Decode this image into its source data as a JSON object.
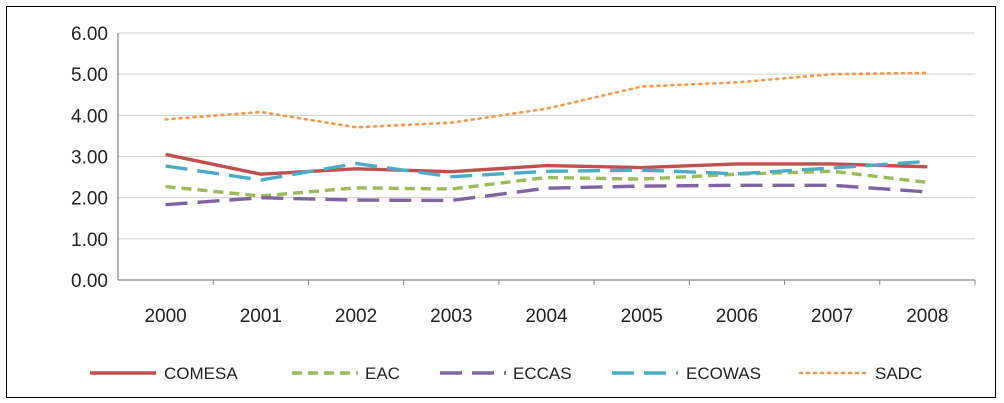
{
  "chart_data": {
    "type": "line",
    "title": "",
    "xlabel": "",
    "ylabel": "",
    "x": [
      "2000",
      "2001",
      "2002",
      "2003",
      "2004",
      "2005",
      "2006",
      "2007",
      "2008"
    ],
    "ylim": [
      0,
      6
    ],
    "yticks": [
      "0.00",
      "1.00",
      "2.00",
      "3.00",
      "4.00",
      "5.00",
      "6.00"
    ],
    "grid": true,
    "legend_position": "bottom",
    "series": [
      {
        "name": "COMESA",
        "color": "#C0504D",
        "dash": "solid",
        "values": [
          3.05,
          2.57,
          2.7,
          2.63,
          2.78,
          2.73,
          2.82,
          2.82,
          2.75
        ]
      },
      {
        "name": "EAC",
        "color": "#9BBB59",
        "dash": "dashed",
        "values": [
          2.27,
          2.04,
          2.24,
          2.21,
          2.49,
          2.45,
          2.57,
          2.64,
          2.37
        ]
      },
      {
        "name": "ECCAS",
        "color": "#8064A2",
        "dash": "longdash",
        "values": [
          1.83,
          2.0,
          1.94,
          1.93,
          2.23,
          2.28,
          2.3,
          2.3,
          2.14
        ]
      },
      {
        "name": "ECOWAS",
        "color": "#4BACC6",
        "dash": "longdash",
        "values": [
          2.77,
          2.43,
          2.83,
          2.51,
          2.64,
          2.67,
          2.58,
          2.72,
          2.88
        ]
      },
      {
        "name": "SADC",
        "color": "#F79646",
        "dash": "dotted",
        "values": [
          3.9,
          4.08,
          3.71,
          3.82,
          4.16,
          4.7,
          4.8,
          5.0,
          5.03
        ]
      }
    ]
  }
}
